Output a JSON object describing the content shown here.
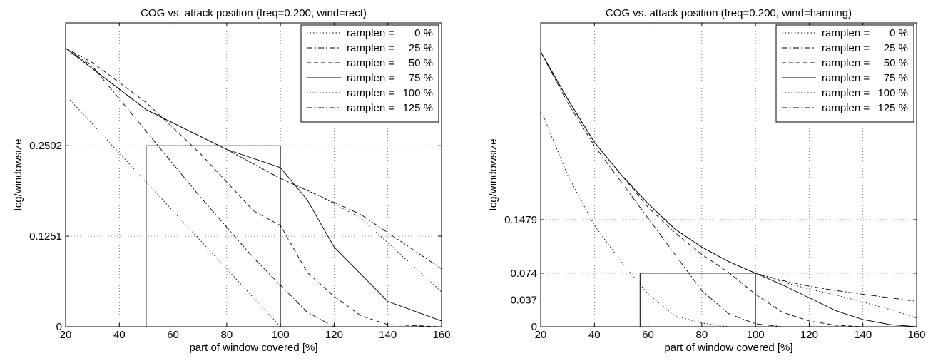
{
  "chart_data": [
    {
      "type": "line",
      "title": "COG vs. attack position (freq=0.200, wind=rect)",
      "xlabel": "part of window covered [%]",
      "ylabel": "tcg/windowsize",
      "xlim": [
        20,
        160
      ],
      "ylim": [
        0,
        0.42
      ],
      "xticks": [
        20,
        40,
        60,
        80,
        100,
        120,
        140,
        160
      ],
      "xtick_labels": [
        "20",
        "40",
        "60",
        "80",
        "100",
        "120",
        "140",
        "160"
      ],
      "yticks": [
        0,
        0.1251,
        0.2502
      ],
      "ytick_labels": [
        "0",
        "0.1251",
        "0.2502"
      ],
      "grid": true,
      "legend_position": "top-right",
      "legend_prefix": "ramplen =",
      "series": [
        {
          "name": "0 %",
          "dash": "1.5 3",
          "x": [
            20,
            100
          ],
          "y": [
            0.32,
            0
          ]
        },
        {
          "name": "25 %",
          "dash": "8 3 2 3",
          "x": [
            20,
            30,
            50,
            70,
            90,
            110,
            120,
            130,
            140,
            160
          ],
          "y": [
            0.385,
            0.36,
            0.27,
            0.18,
            0.095,
            0.02,
            0,
            0,
            0,
            0
          ]
        },
        {
          "name": "50 %",
          "dash": "6 4",
          "x": [
            20,
            30,
            50,
            70,
            90,
            100,
            110,
            120,
            130,
            140,
            160
          ],
          "y": [
            0.385,
            0.365,
            0.31,
            0.24,
            0.16,
            0.14,
            0.075,
            0.042,
            0.015,
            0.003,
            0
          ]
        },
        {
          "name": "75 %",
          "dash": "",
          "x": [
            20,
            50,
            80,
            100,
            110,
            120,
            140,
            160
          ],
          "y": [
            0.385,
            0.3,
            0.245,
            0.22,
            0.175,
            0.11,
            0.035,
            0.008
          ]
        },
        {
          "name": "100 %",
          "dash": "1.5 3",
          "x": [
            20,
            50,
            80,
            100,
            115,
            130,
            160
          ],
          "y": [
            0.385,
            0.3,
            0.245,
            0.205,
            0.18,
            0.15,
            0.048
          ]
        },
        {
          "name": "125 %",
          "dash": "8 3 2 3",
          "x": [
            20,
            50,
            80,
            100,
            115,
            130,
            160
          ],
          "y": [
            0.385,
            0.3,
            0.245,
            0.205,
            0.18,
            0.155,
            0.08
          ]
        }
      ],
      "guides": [
        {
          "x": [
            50,
            50,
            100,
            100
          ],
          "y": [
            0,
            0.2502,
            0.2502,
            0
          ]
        }
      ]
    },
    {
      "type": "line",
      "title": "COG vs. attack position (freq=0.200, wind=hanning)",
      "xlabel": "part of window covered [%]",
      "ylabel": "tcg/windowsize",
      "xlim": [
        20,
        160
      ],
      "ylim": [
        0,
        0.42
      ],
      "xticks": [
        20,
        40,
        60,
        80,
        100,
        120,
        140,
        160
      ],
      "xtick_labels": [
        "20",
        "40",
        "60",
        "80",
        "100",
        "120",
        "140",
        "160"
      ],
      "yticks": [
        0,
        0.037,
        0.074,
        0.1479
      ],
      "ytick_labels": [
        "0",
        "0.037",
        "0.074",
        "0.1479"
      ],
      "grid": true,
      "legend_position": "top-right",
      "legend_prefix": "ramplen =",
      "series": [
        {
          "name": "0 %",
          "dash": "1.5 3",
          "x": [
            20,
            30,
            40,
            50,
            60,
            70,
            80,
            90,
            100
          ],
          "y": [
            0.3,
            0.21,
            0.14,
            0.09,
            0.045,
            0.015,
            0.005,
            0,
            0
          ]
        },
        {
          "name": "25 %",
          "dash": "8 3 2 3",
          "x": [
            20,
            30,
            40,
            50,
            60,
            70,
            80,
            90,
            100,
            110,
            160
          ],
          "y": [
            0.38,
            0.31,
            0.25,
            0.2,
            0.15,
            0.1,
            0.05,
            0.018,
            0.004,
            0,
            0
          ]
        },
        {
          "name": "50 %",
          "dash": "6 4",
          "x": [
            20,
            30,
            40,
            50,
            60,
            70,
            80,
            90,
            100,
            110,
            120,
            130,
            140,
            160
          ],
          "y": [
            0.38,
            0.315,
            0.255,
            0.21,
            0.165,
            0.13,
            0.1,
            0.075,
            0.045,
            0.02,
            0.008,
            0.002,
            0,
            0
          ]
        },
        {
          "name": "75 %",
          "dash": "",
          "x": [
            20,
            30,
            40,
            50,
            60,
            70,
            80,
            90,
            100,
            110,
            120,
            130,
            140,
            150,
            160
          ],
          "y": [
            0.38,
            0.315,
            0.255,
            0.21,
            0.17,
            0.135,
            0.11,
            0.09,
            0.074,
            0.058,
            0.04,
            0.022,
            0.01,
            0.003,
            0
          ]
        },
        {
          "name": "100 %",
          "dash": "1.5 3",
          "x": [
            20,
            30,
            40,
            50,
            60,
            70,
            80,
            90,
            100,
            110,
            120,
            130,
            140,
            150,
            160
          ],
          "y": [
            0.38,
            0.315,
            0.255,
            0.21,
            0.17,
            0.135,
            0.11,
            0.09,
            0.074,
            0.062,
            0.052,
            0.044,
            0.034,
            0.024,
            0.012
          ]
        },
        {
          "name": "125 %",
          "dash": "8 3 2 3",
          "x": [
            20,
            30,
            40,
            50,
            60,
            70,
            80,
            90,
            100,
            110,
            120,
            130,
            140,
            150,
            160
          ],
          "y": [
            0.38,
            0.315,
            0.255,
            0.21,
            0.17,
            0.135,
            0.11,
            0.09,
            0.074,
            0.064,
            0.056,
            0.05,
            0.045,
            0.04,
            0.035
          ]
        }
      ],
      "guides": [
        {
          "x": [
            57,
            57,
            100,
            100
          ],
          "y": [
            0,
            0.074,
            0.074,
            0
          ]
        }
      ]
    }
  ]
}
